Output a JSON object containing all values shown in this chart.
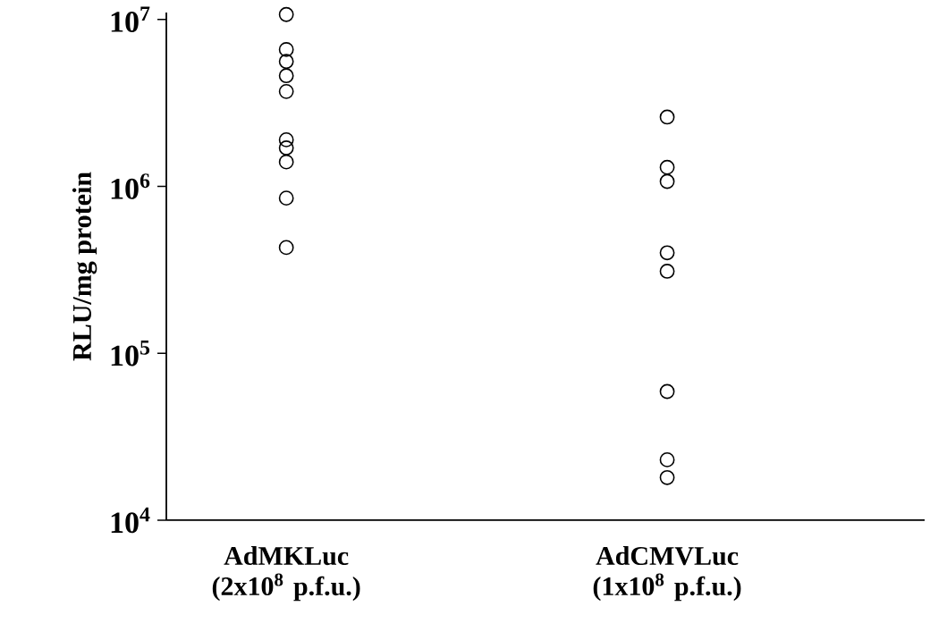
{
  "chart_data": {
    "type": "scatter",
    "ylabel": "RLU/mg protein",
    "categories": [
      "AdMKLuc (2x10$^{8}$ p.f.u.)",
      "AdCMVLuc (1x10$^{8}$ p.f.u.)"
    ],
    "series": [
      {
        "color": "#000000",
        "x": [
          "AdMKLuc (2x10$^{8}$ p.f.u.)",
          "AdMKLuc (2x10$^{8}$ p.f.u.)",
          "AdMKLuc (2x10$^{8}$ p.f.u.)",
          "AdMKLuc (2x10$^{8}$ p.f.u.)",
          "AdMKLuc (2x10$^{8}$ p.f.u.)",
          "AdMKLuc (2x10$^{8}$ p.f.u.)",
          "AdMKLuc (2x10$^{8}$ p.f.u.)",
          "AdMKLuc (2x10$^{8}$ p.f.u.)",
          "AdMKLuc (2x10$^{8}$ p.f.u.)",
          "AdMKLuc (2x10$^{8}$ p.f.u.)"
        ],
        "values": [
          10700000,
          6600000,
          5600000,
          4600000,
          3700000,
          1900000,
          1700000,
          1400000,
          850000,
          430000
        ]
      },
      {
        "color": "#000000",
        "x": [
          "AdCMVLuc (1x10$^{8}$ p.f.u.)",
          "AdCMVLuc (1x10$^{8}$ p.f.u.)",
          "AdCMVLuc (1x10$^{8}$ p.f.u.)",
          "AdCMVLuc (1x10$^{8}$ p.f.u.)",
          "AdCMVLuc (1x10$^{8}$ p.f.u.)",
          "AdCMVLuc (1x10$^{8}$ p.f.u.)",
          "AdCMVLuc (1x10$^{8}$ p.f.u.)",
          "AdCMVLuc (1x10$^{8}$ p.f.u.)"
        ],
        "values": [
          2600000,
          1300000,
          1070000,
          400000,
          310000,
          59000,
          23000,
          18000
        ]
      }
    ],
    "log": "y",
    "ylim": [
      10000,
      11000000
    ],
    "yticks": [
      {
        "value": 10000,
        "label": "10$^{4}$"
      },
      {
        "value": 100000,
        "label": "10$^{5}$"
      },
      {
        "value": 1000000,
        "label": "10$^{6}$"
      },
      {
        "value": 10000000,
        "label": "10$^{7}$"
      }
    ],
    "marker": "circle",
    "grid": false
  }
}
